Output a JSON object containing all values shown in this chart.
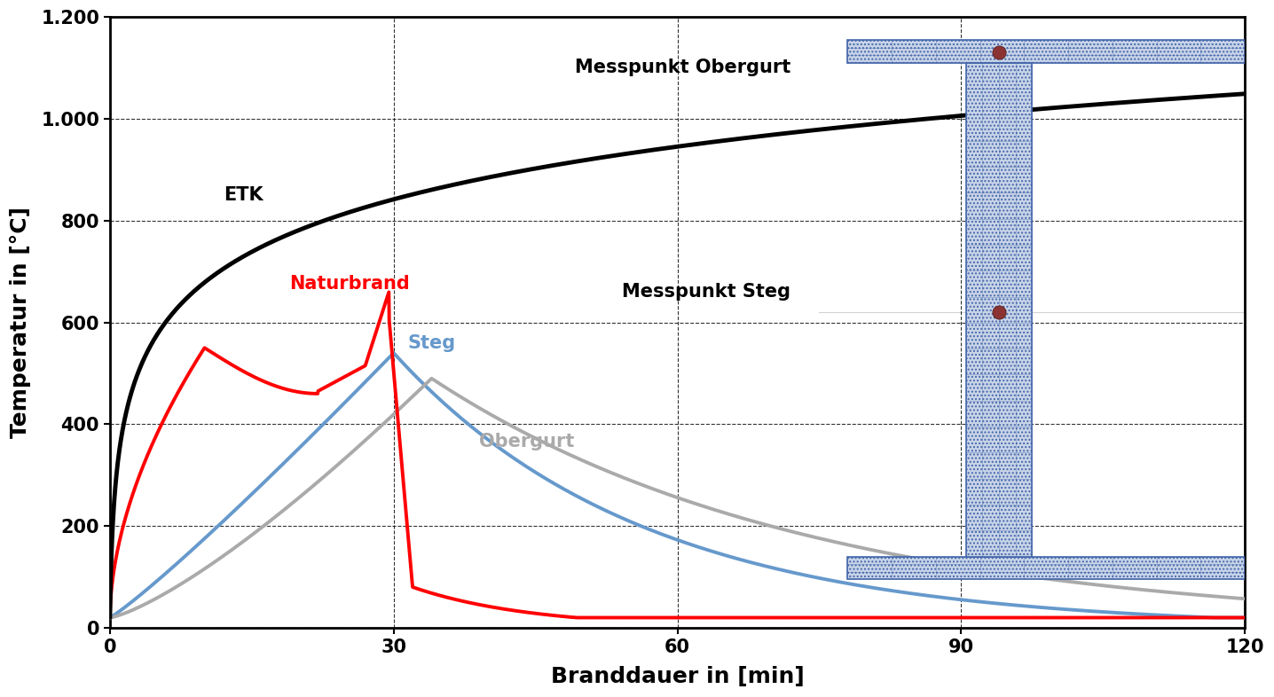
{
  "xlabel": "Branddauer in [min]",
  "ylabel": "Temperatur in [°C]",
  "xlim": [
    0,
    120
  ],
  "ylim": [
    0,
    1200
  ],
  "xticks": [
    0,
    30,
    60,
    90,
    120
  ],
  "yticks": [
    0,
    200,
    400,
    600,
    800,
    1000,
    1200
  ],
  "ytick_labels": [
    "0",
    "200",
    "400",
    "600",
    "800",
    "1.000",
    "1.200"
  ],
  "etk_color": "#000000",
  "naturbrand_color": "#ff0000",
  "steg_color": "#6699cc",
  "obergurt_color": "#aaaaaa",
  "annotation_etk": "ETK",
  "annotation_naturbrand": "Naturbrand",
  "annotation_steg": "Steg",
  "annotation_obergurt": "Obergurt",
  "annotation_messpunkt_obergurt": "Messpunkt Obergurt",
  "annotation_messpunkt_steg": "Messpunkt Steg",
  "background_color": "#ffffff",
  "beam_fill": "#c8d4e8",
  "beam_edge": "#4466aa",
  "dot_color": "#8B3333"
}
